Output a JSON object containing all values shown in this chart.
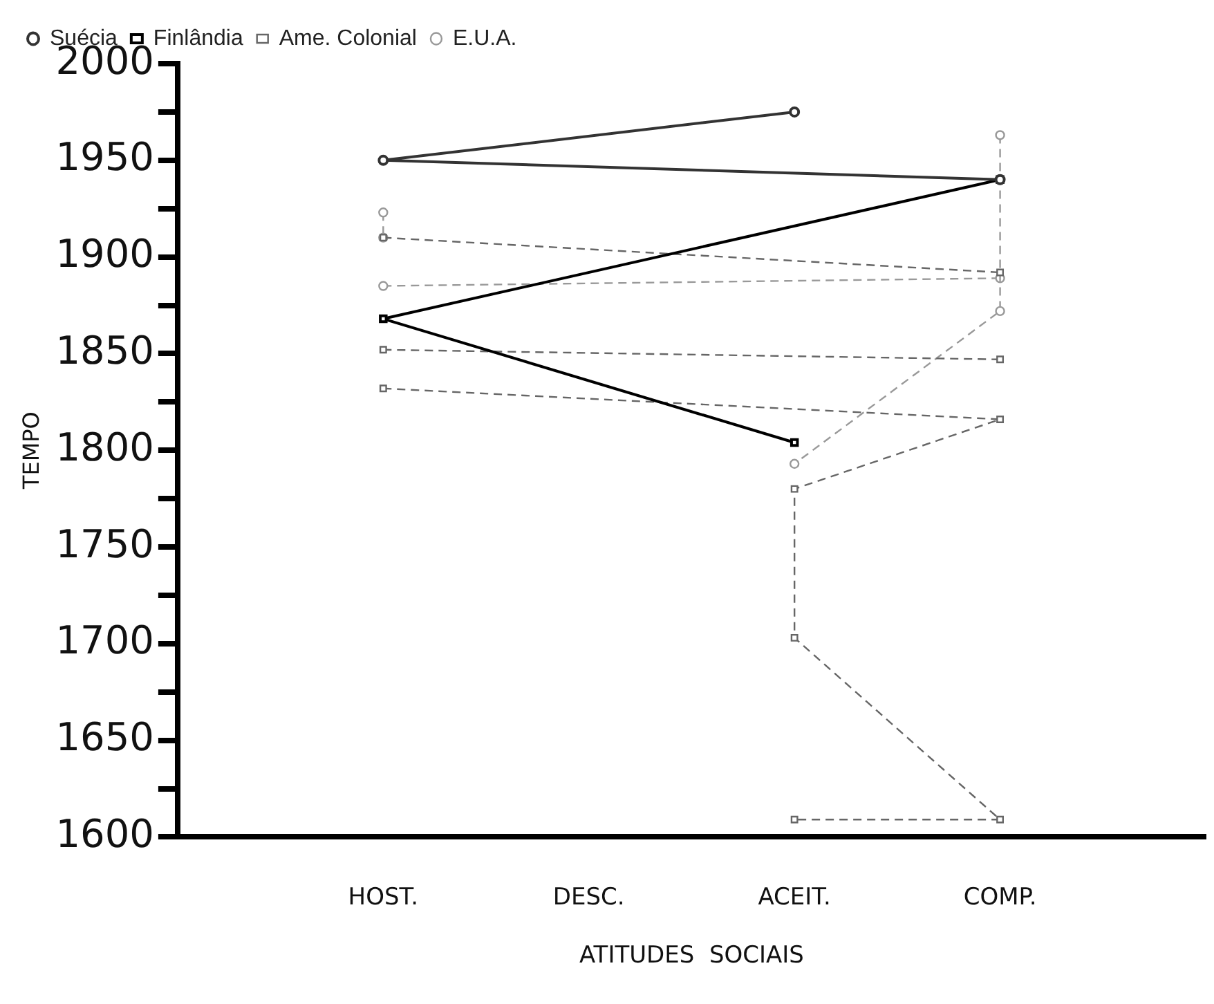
{
  "chart_data": {
    "type": "line",
    "xlabel": "ATITUDES  SOCIAIS",
    "ylabel": "TEMPO",
    "categories": [
      "HOST.",
      "DESC.",
      "ACEIT.",
      "COMP."
    ],
    "ylim": [
      1600,
      2000
    ],
    "yticks": [
      1600,
      {
        "value": 1625,
        "label": null
      },
      1650,
      {
        "value": 1675,
        "label": null
      },
      1700,
      {
        "value": 1725,
        "label": null
      },
      1750,
      {
        "value": 1775,
        "label": null
      },
      1800,
      {
        "value": 1825,
        "label": null
      },
      1850,
      {
        "value": 1875,
        "label": null
      },
      1900,
      {
        "value": 1925,
        "label": null
      },
      1950,
      {
        "value": 1975,
        "label": null
      },
      2000
    ],
    "legend": "top left",
    "grid": false,
    "series": [
      {
        "name": "Suécia",
        "color": "#333333",
        "marker": "circle",
        "line_style": "solid",
        "x": [
          "ACEIT.",
          "HOST.",
          "COMP."
        ],
        "values": [
          1975,
          1950,
          1940
        ]
      },
      {
        "name": "Finlândia",
        "color": "#000000",
        "marker": "square",
        "line_style": "solid",
        "x": [
          "COMP.",
          "HOST.",
          "ACEIT."
        ],
        "values": [
          1940,
          1868,
          1804
        ]
      },
      {
        "name": "Ame. Colonial",
        "color": "#666666",
        "marker": "square",
        "line_style": "dashed",
        "x": [
          "HOST.",
          "COMP.",
          "ACEIT.",
          "ACEIT.",
          "COMP.",
          "ACEIT."
        ],
        "values": [
          1832,
          1816,
          1780,
          1703,
          1609,
          1609
        ]
      },
      {
        "color": "#666666",
        "marker": "square",
        "line_style": "dashed",
        "x": [
          "HOST.",
          "COMP."
        ],
        "values": [
          1910,
          1892
        ]
      },
      {
        "color": "#666666",
        "marker": "square",
        "line_style": "dashed",
        "x": [
          "HOST.",
          "COMP."
        ],
        "values": [
          1852,
          1847
        ]
      },
      {
        "name": "E.U.A.",
        "color": "#999999",
        "marker": "circle",
        "line_style": "dashed",
        "x": [
          "COMP.",
          "COMP.",
          "COMP.",
          "ACEIT."
        ],
        "values": [
          1963,
          1940,
          1872,
          1793
        ]
      },
      {
        "color": "#999999",
        "marker": "circle",
        "line_style": "dashed",
        "x": [
          "HOST.",
          "COMP."
        ],
        "values": [
          1885,
          1889
        ]
      },
      {
        "color": "#999999",
        "marker": "circle",
        "line_style": "dashed",
        "x": [
          "HOST.",
          "HOST."
        ],
        "values": [
          1923,
          1910
        ]
      }
    ]
  }
}
